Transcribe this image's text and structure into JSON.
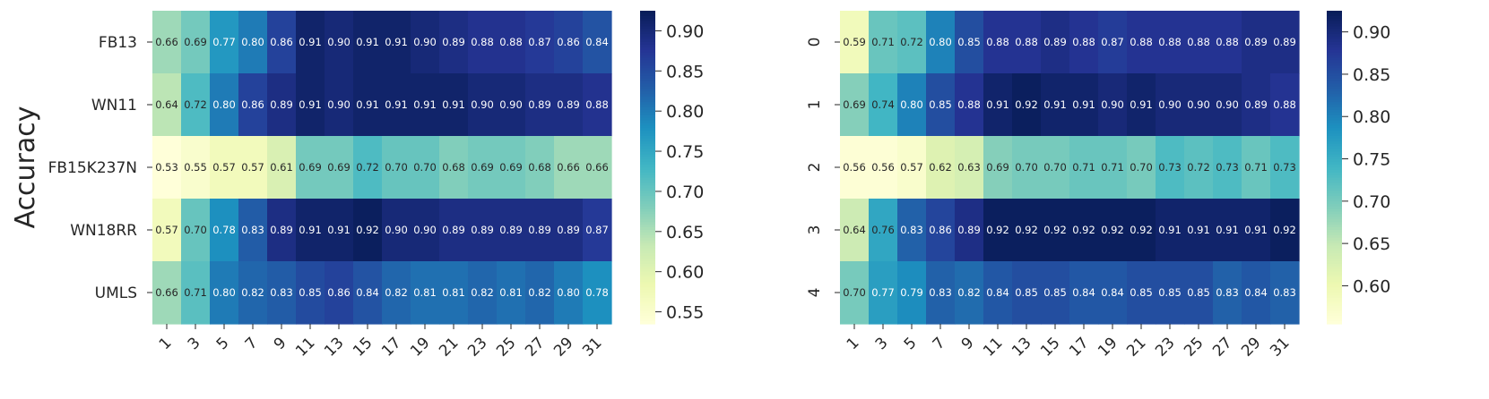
{
  "figure": {
    "ylabel": "Accuracy"
  },
  "chart_data": [
    {
      "type": "heatmap",
      "title": "",
      "xlabel": "",
      "ylabel": "Accuracy",
      "x": [
        "1",
        "3",
        "5",
        "7",
        "9",
        "11",
        "13",
        "15",
        "17",
        "19",
        "21",
        "23",
        "25",
        "27",
        "29",
        "31"
      ],
      "y": [
        "FB13",
        "WN11",
        "FB15K237N",
        "WN18RR",
        "UMLS"
      ],
      "values": [
        [
          0.66,
          0.69,
          0.77,
          0.8,
          0.86,
          0.91,
          0.9,
          0.91,
          0.91,
          0.9,
          0.89,
          0.88,
          0.88,
          0.87,
          0.86,
          0.84
        ],
        [
          0.64,
          0.72,
          0.8,
          0.86,
          0.89,
          0.91,
          0.9,
          0.91,
          0.91,
          0.91,
          0.91,
          0.9,
          0.9,
          0.89,
          0.89,
          0.88
        ],
        [
          0.53,
          0.55,
          0.57,
          0.57,
          0.61,
          0.69,
          0.69,
          0.72,
          0.7,
          0.7,
          0.68,
          0.69,
          0.69,
          0.68,
          0.66,
          0.66
        ],
        [
          0.57,
          0.7,
          0.78,
          0.83,
          0.89,
          0.91,
          0.91,
          0.92,
          0.9,
          0.9,
          0.89,
          0.89,
          0.89,
          0.89,
          0.89,
          0.87
        ],
        [
          0.66,
          0.71,
          0.8,
          0.82,
          0.83,
          0.85,
          0.86,
          0.84,
          0.82,
          0.81,
          0.81,
          0.82,
          0.81,
          0.82,
          0.8,
          0.78
        ]
      ],
      "value_labels": [
        [
          "0.66",
          "0.69",
          "0.77",
          "0.80",
          "0.86",
          "0.91",
          "0.90",
          "0.91",
          "0.91",
          "0.90",
          "0.89",
          "0.88",
          "0.88",
          "0.87",
          "0.86",
          "0.84"
        ],
        [
          "0.64",
          "0.72",
          "0.80",
          "0.86",
          "0.89",
          "0.91",
          "0.90",
          "0.91",
          "0.91",
          "0.91",
          "0.91",
          "0.90",
          "0.90",
          "0.89",
          "0.89",
          "0.88"
        ],
        [
          "0.53",
          "0.55",
          "0.57",
          "0.57",
          "0.61",
          "0.69",
          "0.69",
          "0.72",
          "0.70",
          "0.70",
          "0.68",
          "0.69",
          "0.69",
          "0.68",
          "0.66",
          "0.66"
        ],
        [
          "0.57",
          "0.70",
          "0.78",
          "0.83",
          "0.89",
          "0.91",
          "0.91",
          "0.92",
          "0.90",
          "0.90",
          "0.89",
          "0.89",
          "0.89",
          "0.89",
          "0.89",
          "0.87"
        ],
        [
          "0.66",
          "0.71",
          "0.80",
          "0.82",
          "0.83",
          "0.85",
          "0.86",
          "0.84",
          "0.82",
          "0.81",
          "0.81",
          "0.82",
          "0.81",
          "0.82",
          "0.80",
          "0.78"
        ]
      ],
      "colormap": "YlGnBu",
      "colorbar": {
        "range": [
          0.535,
          0.925
        ],
        "ticks": [
          0.55,
          0.6,
          0.65,
          0.7,
          0.75,
          0.8,
          0.85,
          0.9
        ],
        "tick_labels": [
          "0.55",
          "0.60",
          "0.65",
          "0.70",
          "0.75",
          "0.80",
          "0.85",
          "0.90"
        ]
      },
      "grid": false
    },
    {
      "type": "heatmap",
      "title": "",
      "xlabel": "",
      "ylabel": "",
      "x": [
        "1",
        "3",
        "5",
        "7",
        "9",
        "11",
        "13",
        "15",
        "17",
        "19",
        "21",
        "23",
        "25",
        "27",
        "29",
        "31"
      ],
      "y": [
        "0",
        "1",
        "2",
        "3",
        "4"
      ],
      "values": [
        [
          0.59,
          0.71,
          0.72,
          0.8,
          0.85,
          0.88,
          0.88,
          0.89,
          0.88,
          0.87,
          0.88,
          0.88,
          0.88,
          0.88,
          0.89,
          0.89
        ],
        [
          0.69,
          0.74,
          0.8,
          0.85,
          0.88,
          0.91,
          0.92,
          0.91,
          0.91,
          0.9,
          0.91,
          0.9,
          0.9,
          0.9,
          0.89,
          0.88
        ],
        [
          0.56,
          0.56,
          0.57,
          0.62,
          0.63,
          0.69,
          0.7,
          0.7,
          0.71,
          0.71,
          0.7,
          0.73,
          0.72,
          0.73,
          0.71,
          0.73
        ],
        [
          0.64,
          0.76,
          0.83,
          0.86,
          0.89,
          0.92,
          0.92,
          0.92,
          0.92,
          0.92,
          0.92,
          0.91,
          0.91,
          0.91,
          0.91,
          0.92
        ],
        [
          0.7,
          0.77,
          0.79,
          0.83,
          0.82,
          0.84,
          0.85,
          0.85,
          0.84,
          0.84,
          0.85,
          0.85,
          0.85,
          0.83,
          0.84,
          0.83
        ]
      ],
      "value_labels": [
        [
          "0.59",
          "0.71",
          "0.72",
          "0.80",
          "0.85",
          "0.88",
          "0.88",
          "0.89",
          "0.88",
          "0.87",
          "0.88",
          "0.88",
          "0.88",
          "0.88",
          "0.89",
          "0.89"
        ],
        [
          "0.69",
          "0.74",
          "0.80",
          "0.85",
          "0.88",
          "0.91",
          "0.92",
          "0.91",
          "0.91",
          "0.90",
          "0.91",
          "0.90",
          "0.90",
          "0.90",
          "0.89",
          "0.88"
        ],
        [
          "0.56",
          "0.56",
          "0.57",
          "0.62",
          "0.63",
          "0.69",
          "0.70",
          "0.70",
          "0.71",
          "0.71",
          "0.70",
          "0.73",
          "0.72",
          "0.73",
          "0.71",
          "0.73"
        ],
        [
          "0.64",
          "0.76",
          "0.83",
          "0.86",
          "0.89",
          "0.92",
          "0.92",
          "0.92",
          "0.92",
          "0.92",
          "0.92",
          "0.91",
          "0.91",
          "0.91",
          "0.91",
          "0.92"
        ],
        [
          "0.70",
          "0.77",
          "0.79",
          "0.83",
          "0.82",
          "0.84",
          "0.85",
          "0.85",
          "0.84",
          "0.84",
          "0.85",
          "0.85",
          "0.85",
          "0.83",
          "0.84",
          "0.83"
        ]
      ],
      "colormap": "YlGnBu",
      "colorbar": {
        "range": [
          0.555,
          0.925
        ],
        "ticks": [
          0.6,
          0.65,
          0.7,
          0.75,
          0.8,
          0.85,
          0.9
        ],
        "tick_labels": [
          "0.60",
          "0.65",
          "0.70",
          "0.75",
          "0.80",
          "0.85",
          "0.90"
        ]
      },
      "grid": false
    }
  ]
}
